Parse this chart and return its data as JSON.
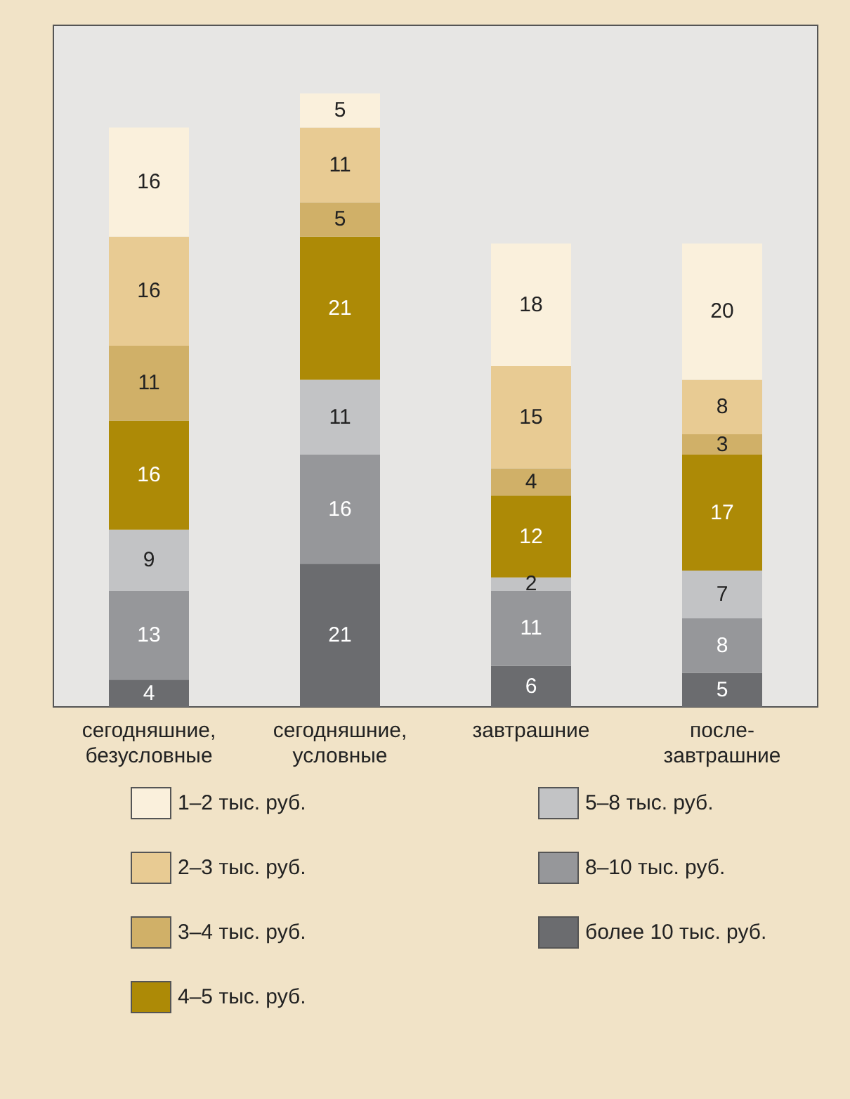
{
  "chart_data": {
    "type": "bar",
    "stacked": true,
    "data_labels": true,
    "legend": "bottom",
    "categories": [
      "сегодняшние,\nбезусловные",
      "сегодняшние,\nусловные",
      "завтрашние",
      "после-\nзавтрашние"
    ],
    "series": [
      {
        "name": "более 10 тыс. руб.",
        "color": "#6b6c6f",
        "values": [
          4,
          21,
          6,
          5
        ]
      },
      {
        "name": "8–10 тыс. руб.",
        "color": "#96979a",
        "values": [
          13,
          16,
          11,
          8
        ]
      },
      {
        "name": "5–8 тыс. руб.",
        "color": "#c2c3c5",
        "values": [
          9,
          11,
          2,
          7
        ]
      },
      {
        "name": "4–5 тыс. руб.",
        "color": "#ad8a06",
        "values": [
          16,
          21,
          12,
          17
        ]
      },
      {
        "name": "3–4 тыс. руб.",
        "color": "#d0b068",
        "values": [
          11,
          5,
          4,
          3
        ]
      },
      {
        "name": "2–3 тыс. руб.",
        "color": "#e8cb93",
        "values": [
          16,
          11,
          15,
          8
        ]
      },
      {
        "name": "1–2 тыс. руб.",
        "color": "#faf0dc",
        "values": [
          16,
          5,
          18,
          20
        ]
      }
    ]
  }
}
